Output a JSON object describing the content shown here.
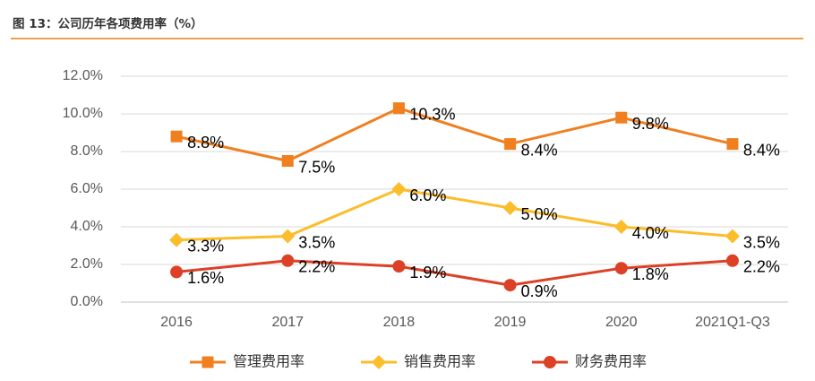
{
  "figure": {
    "title": "图 13：公司历年各项费用率（%）"
  },
  "chart_data": {
    "type": "line",
    "categories": [
      "2016",
      "2017",
      "2018",
      "2019",
      "2020",
      "2021Q1-Q3"
    ],
    "ylim": [
      0,
      12
    ],
    "yticks": [
      0,
      2,
      4,
      6,
      8,
      10,
      12
    ],
    "ytick_labels": [
      "0.0%",
      "2.0%",
      "4.0%",
      "6.0%",
      "8.0%",
      "10.0%",
      "12.0%"
    ],
    "grid": true,
    "legend_position": "bottom",
    "series": [
      {
        "name": "管理费用率",
        "values": [
          8.8,
          7.5,
          10.3,
          8.4,
          9.8,
          8.4
        ],
        "labels": [
          "8.8%",
          "7.5%",
          "10.3%",
          "8.4%",
          "9.8%",
          "8.4%"
        ],
        "color": "#f07f20",
        "marker": "square"
      },
      {
        "name": "销售费用率",
        "values": [
          3.3,
          3.5,
          6.0,
          5.0,
          4.0,
          3.5
        ],
        "labels": [
          "3.3%",
          "3.5%",
          "6.0%",
          "5.0%",
          "4.0%",
          "3.5%"
        ],
        "color": "#fbbd2a",
        "marker": "diamond"
      },
      {
        "name": "财务费用率",
        "values": [
          1.6,
          2.2,
          1.9,
          0.9,
          1.8,
          2.2
        ],
        "labels": [
          "1.6%",
          "2.2%",
          "1.9%",
          "0.9%",
          "1.8%",
          "2.2%"
        ],
        "color": "#dc4127",
        "marker": "circle"
      }
    ]
  }
}
